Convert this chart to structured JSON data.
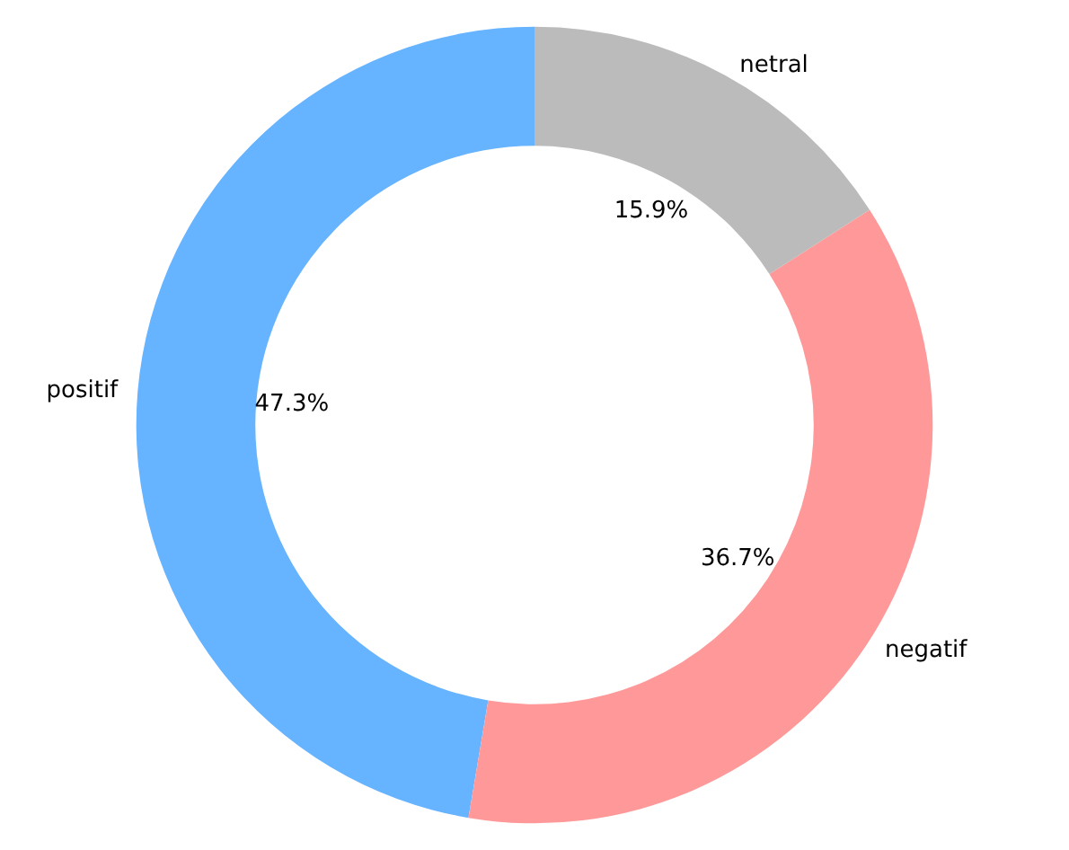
{
  "chart_data": {
    "type": "donut",
    "categories": [
      "positif",
      "negatif",
      "netral"
    ],
    "values": [
      47.3,
      36.7,
      15.9
    ],
    "colors": [
      "#66b3ff",
      "#ff9999",
      "#bbbbbb"
    ],
    "value_labels": [
      "47.3%",
      "36.7%",
      "15.9%"
    ],
    "legend": false
  }
}
